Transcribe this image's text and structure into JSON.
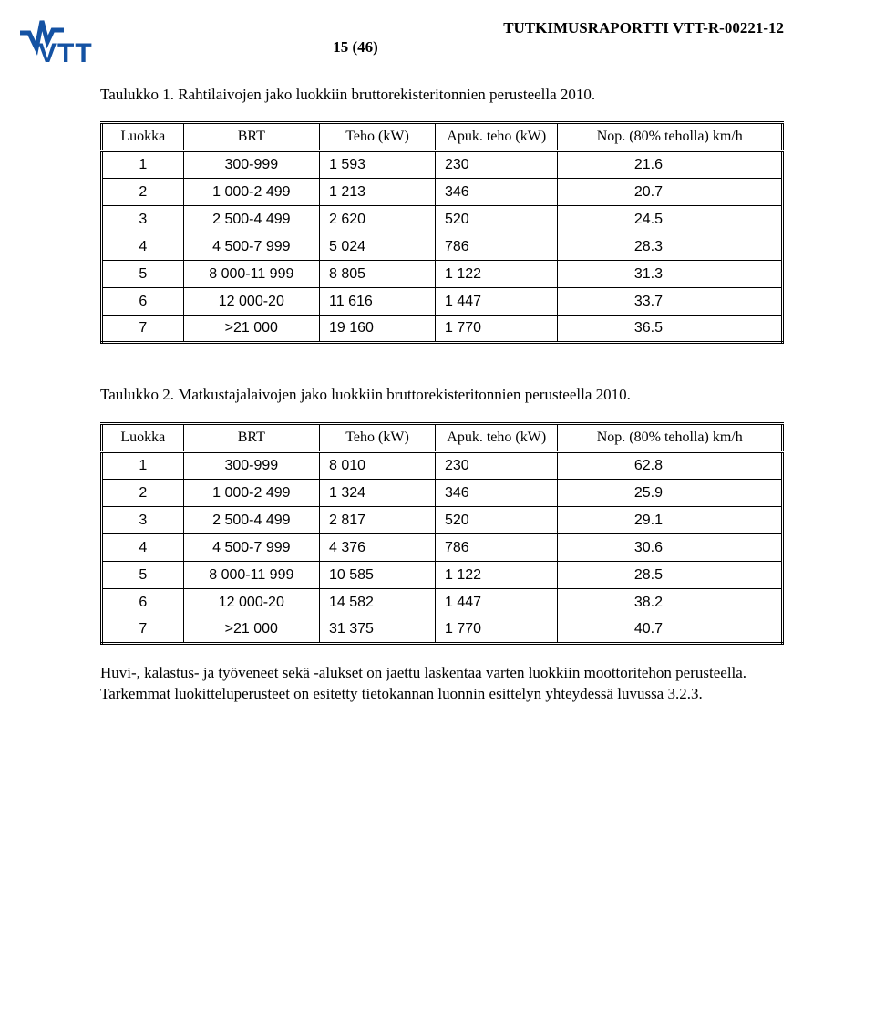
{
  "header": {
    "report_label": "TUTKIMUSRAPORTTI  VTT-R-00221-12",
    "page_of": "15 (46)"
  },
  "logo": {
    "brand_color": "#1452a3",
    "text": "VTT"
  },
  "caption1": "Taulukko 1. Rahtilaivojen jako luokkiin bruttorekisteritonnien perusteella 2010.",
  "table_headers": {
    "luokka": "Luokka",
    "brt": "BRT",
    "teho": "Teho (kW)",
    "apuk": "Apuk. teho (kW)",
    "nop": "Nop. (80% teholla) km/h"
  },
  "table1_rows": [
    {
      "luokka": "1",
      "brt": "300-999",
      "teho": "1 593",
      "apuk": "230",
      "nop": "21.6"
    },
    {
      "luokka": "2",
      "brt": "1 000-2 499",
      "teho": "1 213",
      "apuk": "346",
      "nop": "20.7"
    },
    {
      "luokka": "3",
      "brt": "2 500-4 499",
      "teho": "2 620",
      "apuk": "520",
      "nop": "24.5"
    },
    {
      "luokka": "4",
      "brt": "4 500-7 999",
      "teho": "5 024",
      "apuk": "786",
      "nop": "28.3"
    },
    {
      "luokka": "5",
      "brt": "8 000-11 999",
      "teho": "8 805",
      "apuk": "1 122",
      "nop": "31.3"
    },
    {
      "luokka": "6",
      "brt": "12 000-20",
      "teho": "11 616",
      "apuk": "1 447",
      "nop": "33.7"
    },
    {
      "luokka": "7",
      "brt": ">21 000",
      "teho": "19 160",
      "apuk": "1 770",
      "nop": "36.5"
    }
  ],
  "caption2": "Taulukko 2. Matkustajalaivojen jako luokkiin bruttorekisteritonnien perusteella 2010.",
  "table2_rows": [
    {
      "luokka": "1",
      "brt": "300-999",
      "teho": "8 010",
      "apuk": "230",
      "nop": "62.8"
    },
    {
      "luokka": "2",
      "brt": "1 000-2 499",
      "teho": "1 324",
      "apuk": "346",
      "nop": "25.9"
    },
    {
      "luokka": "3",
      "brt": "2 500-4 499",
      "teho": "2 817",
      "apuk": "520",
      "nop": "29.1"
    },
    {
      "luokka": "4",
      "brt": "4 500-7 999",
      "teho": "4 376",
      "apuk": "786",
      "nop": "30.6"
    },
    {
      "luokka": "5",
      "brt": "8 000-11 999",
      "teho": "10 585",
      "apuk": "1 122",
      "nop": "28.5"
    },
    {
      "luokka": "6",
      "brt": "12 000-20",
      "teho": "14 582",
      "apuk": "1 447",
      "nop": "38.2"
    },
    {
      "luokka": "7",
      "brt": ">21 000",
      "teho": "31 375",
      "apuk": "1 770",
      "nop": "40.7"
    }
  ],
  "bodytext": "Huvi-, kalastus- ja työveneet sekä -alukset on jaettu laskentaa varten luokkiin moottoritehon perusteella. Tarkemmat luokitteluperusteet on esitetty tietokannan luonnin esittelyn yhteydessä luvussa 3.2.3."
}
